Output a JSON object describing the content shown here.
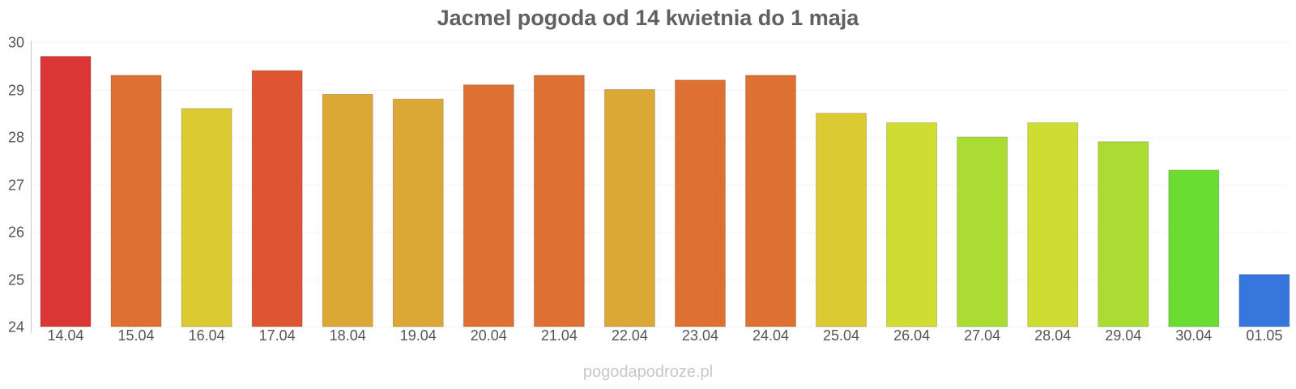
{
  "chart_data": {
    "type": "bar",
    "title": "Jacmel pogoda od 14 kwietnia do 1 maja",
    "xlabel": "",
    "ylabel": "",
    "ylim": [
      24,
      30
    ],
    "yticks": [
      24,
      25,
      26,
      27,
      28,
      29,
      30
    ],
    "grid": true,
    "categories": [
      "14.04",
      "15.04",
      "16.04",
      "17.04",
      "18.04",
      "19.04",
      "20.04",
      "21.04",
      "22.04",
      "23.04",
      "24.04",
      "25.04",
      "26.04",
      "27.04",
      "28.04",
      "29.04",
      "30.04",
      "01.05"
    ],
    "values": [
      29.7,
      29.3,
      28.6,
      29.4,
      28.9,
      28.8,
      29.1,
      29.3,
      29.0,
      29.2,
      29.3,
      28.5,
      28.3,
      28.0,
      28.3,
      27.9,
      27.3,
      25.1
    ],
    "colors": [
      "#dc3535",
      "#de7032",
      "#dcca32",
      "#de5532",
      "#dca835",
      "#dca835",
      "#de7032",
      "#de7032",
      "#dca835",
      "#de7032",
      "#de7032",
      "#dcca32",
      "#cfdc32",
      "#aadc32",
      "#cfdc32",
      "#aadc32",
      "#6adc32",
      "#3577dc"
    ]
  },
  "watermark": "pogodapodroze.pl"
}
